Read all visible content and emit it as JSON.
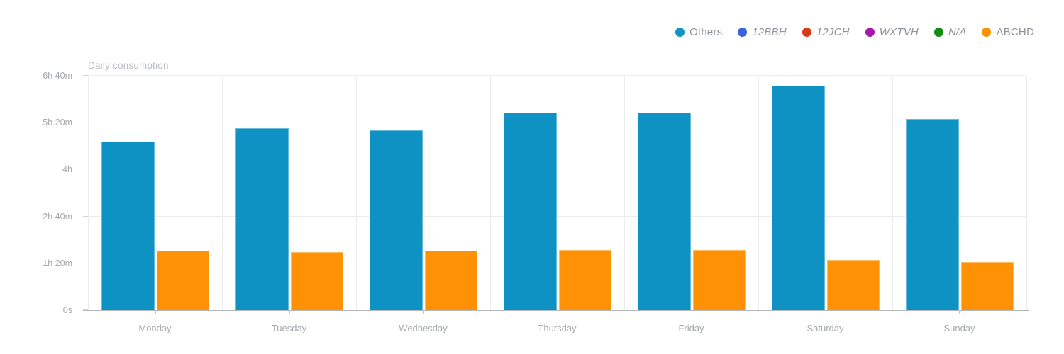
{
  "window": {
    "background": "#ffffff"
  },
  "colors": {
    "title_text": "#b9bdc1",
    "axis_label_text": "#a6aaae",
    "legend_label_text": "#8e949b",
    "gridline": "#ececec",
    "axis_line": "#b3b6ba"
  },
  "legend": {
    "items": [
      {
        "label": "Others",
        "color": "#1095c3",
        "italic": false
      },
      {
        "label": "12BBH",
        "color": "#3a64d8",
        "italic": true
      },
      {
        "label": "12JCH",
        "color": "#d63a17",
        "italic": true
      },
      {
        "label": "WXTVH",
        "color": "#a617ad",
        "italic": true
      },
      {
        "label": "N/A",
        "color": "#148c14",
        "italic": true
      },
      {
        "label": "ABCHD",
        "color": "#fb9205",
        "italic": false
      }
    ]
  },
  "chart_data": {
    "type": "bar",
    "title": "Daily consumption",
    "categories": [
      "Monday",
      "Tuesday",
      "Wednesday",
      "Thursday",
      "Friday",
      "Saturday",
      "Sunday"
    ],
    "series": [
      {
        "name": "Others",
        "color": "#0e91c3",
        "unit": "minutes",
        "values": [
          288,
          311,
          307,
          337,
          337,
          383,
          326
        ],
        "display_values": [
          "4h 48m",
          "5h 11m",
          "5h 07m",
          "5h 37m",
          "5h 37m",
          "6h 23m",
          "5h 26m"
        ]
      },
      {
        "name": "ABCHD",
        "color": "#fe9204",
        "unit": "minutes",
        "values": [
          102,
          99,
          102,
          103,
          103,
          86,
          82
        ],
        "display_values": [
          "1h 42m",
          "1h 39m",
          "1h 42m",
          "1h 43m",
          "1h 43m",
          "1h 26m",
          "1h 22m"
        ]
      }
    ],
    "y_axis": {
      "max_minutes": 400,
      "ticks": [
        {
          "label": "0s",
          "minutes": 0
        },
        {
          "label": "1h 20m",
          "minutes": 80
        },
        {
          "label": "2h 40m",
          "minutes": 160
        },
        {
          "label": "4h",
          "minutes": 240
        },
        {
          "label": "5h 20m",
          "minutes": 320
        },
        {
          "label": "6h 40m",
          "minutes": 400
        }
      ]
    },
    "grid": true,
    "legend_position": "top-right"
  }
}
